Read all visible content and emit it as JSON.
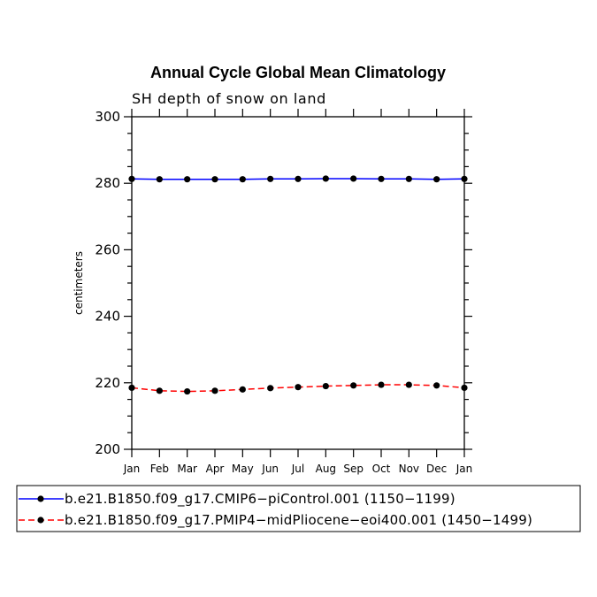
{
  "chart_data": {
    "type": "line",
    "title": "Annual Cycle Global Mean Climatology",
    "subtitle": "SH depth of snow on land",
    "xlabel": "",
    "ylabel": "centimeters",
    "ylim": [
      200,
      300
    ],
    "yticks": [
      "200",
      "220",
      "240",
      "260",
      "280",
      "300"
    ],
    "categories": [
      "Jan",
      "Feb",
      "Mar",
      "Apr",
      "May",
      "Jun",
      "Jul",
      "Aug",
      "Sep",
      "Oct",
      "Nov",
      "Dec",
      "Jan"
    ],
    "series": [
      {
        "name": "b.e21.B1850.f09_g17.CMIP6−piControl.001 (1150−1199)",
        "color": "#0000ff",
        "line_style": "solid",
        "marker": "circle",
        "values": [
          281.3,
          281.2,
          281.2,
          281.2,
          281.2,
          281.3,
          281.3,
          281.4,
          281.4,
          281.3,
          281.3,
          281.2,
          281.3
        ]
      },
      {
        "name": "b.e21.B1850.f09_g17.PMIP4−midPliocene−eoi400.001 (1450−1499)",
        "color": "#ff0000",
        "line_style": "dashed",
        "marker": "circle",
        "values": [
          218.5,
          217.6,
          217.4,
          217.6,
          218.0,
          218.4,
          218.7,
          219.0,
          219.2,
          219.4,
          219.4,
          219.2,
          218.5
        ]
      }
    ],
    "legend_position": "bottom"
  }
}
